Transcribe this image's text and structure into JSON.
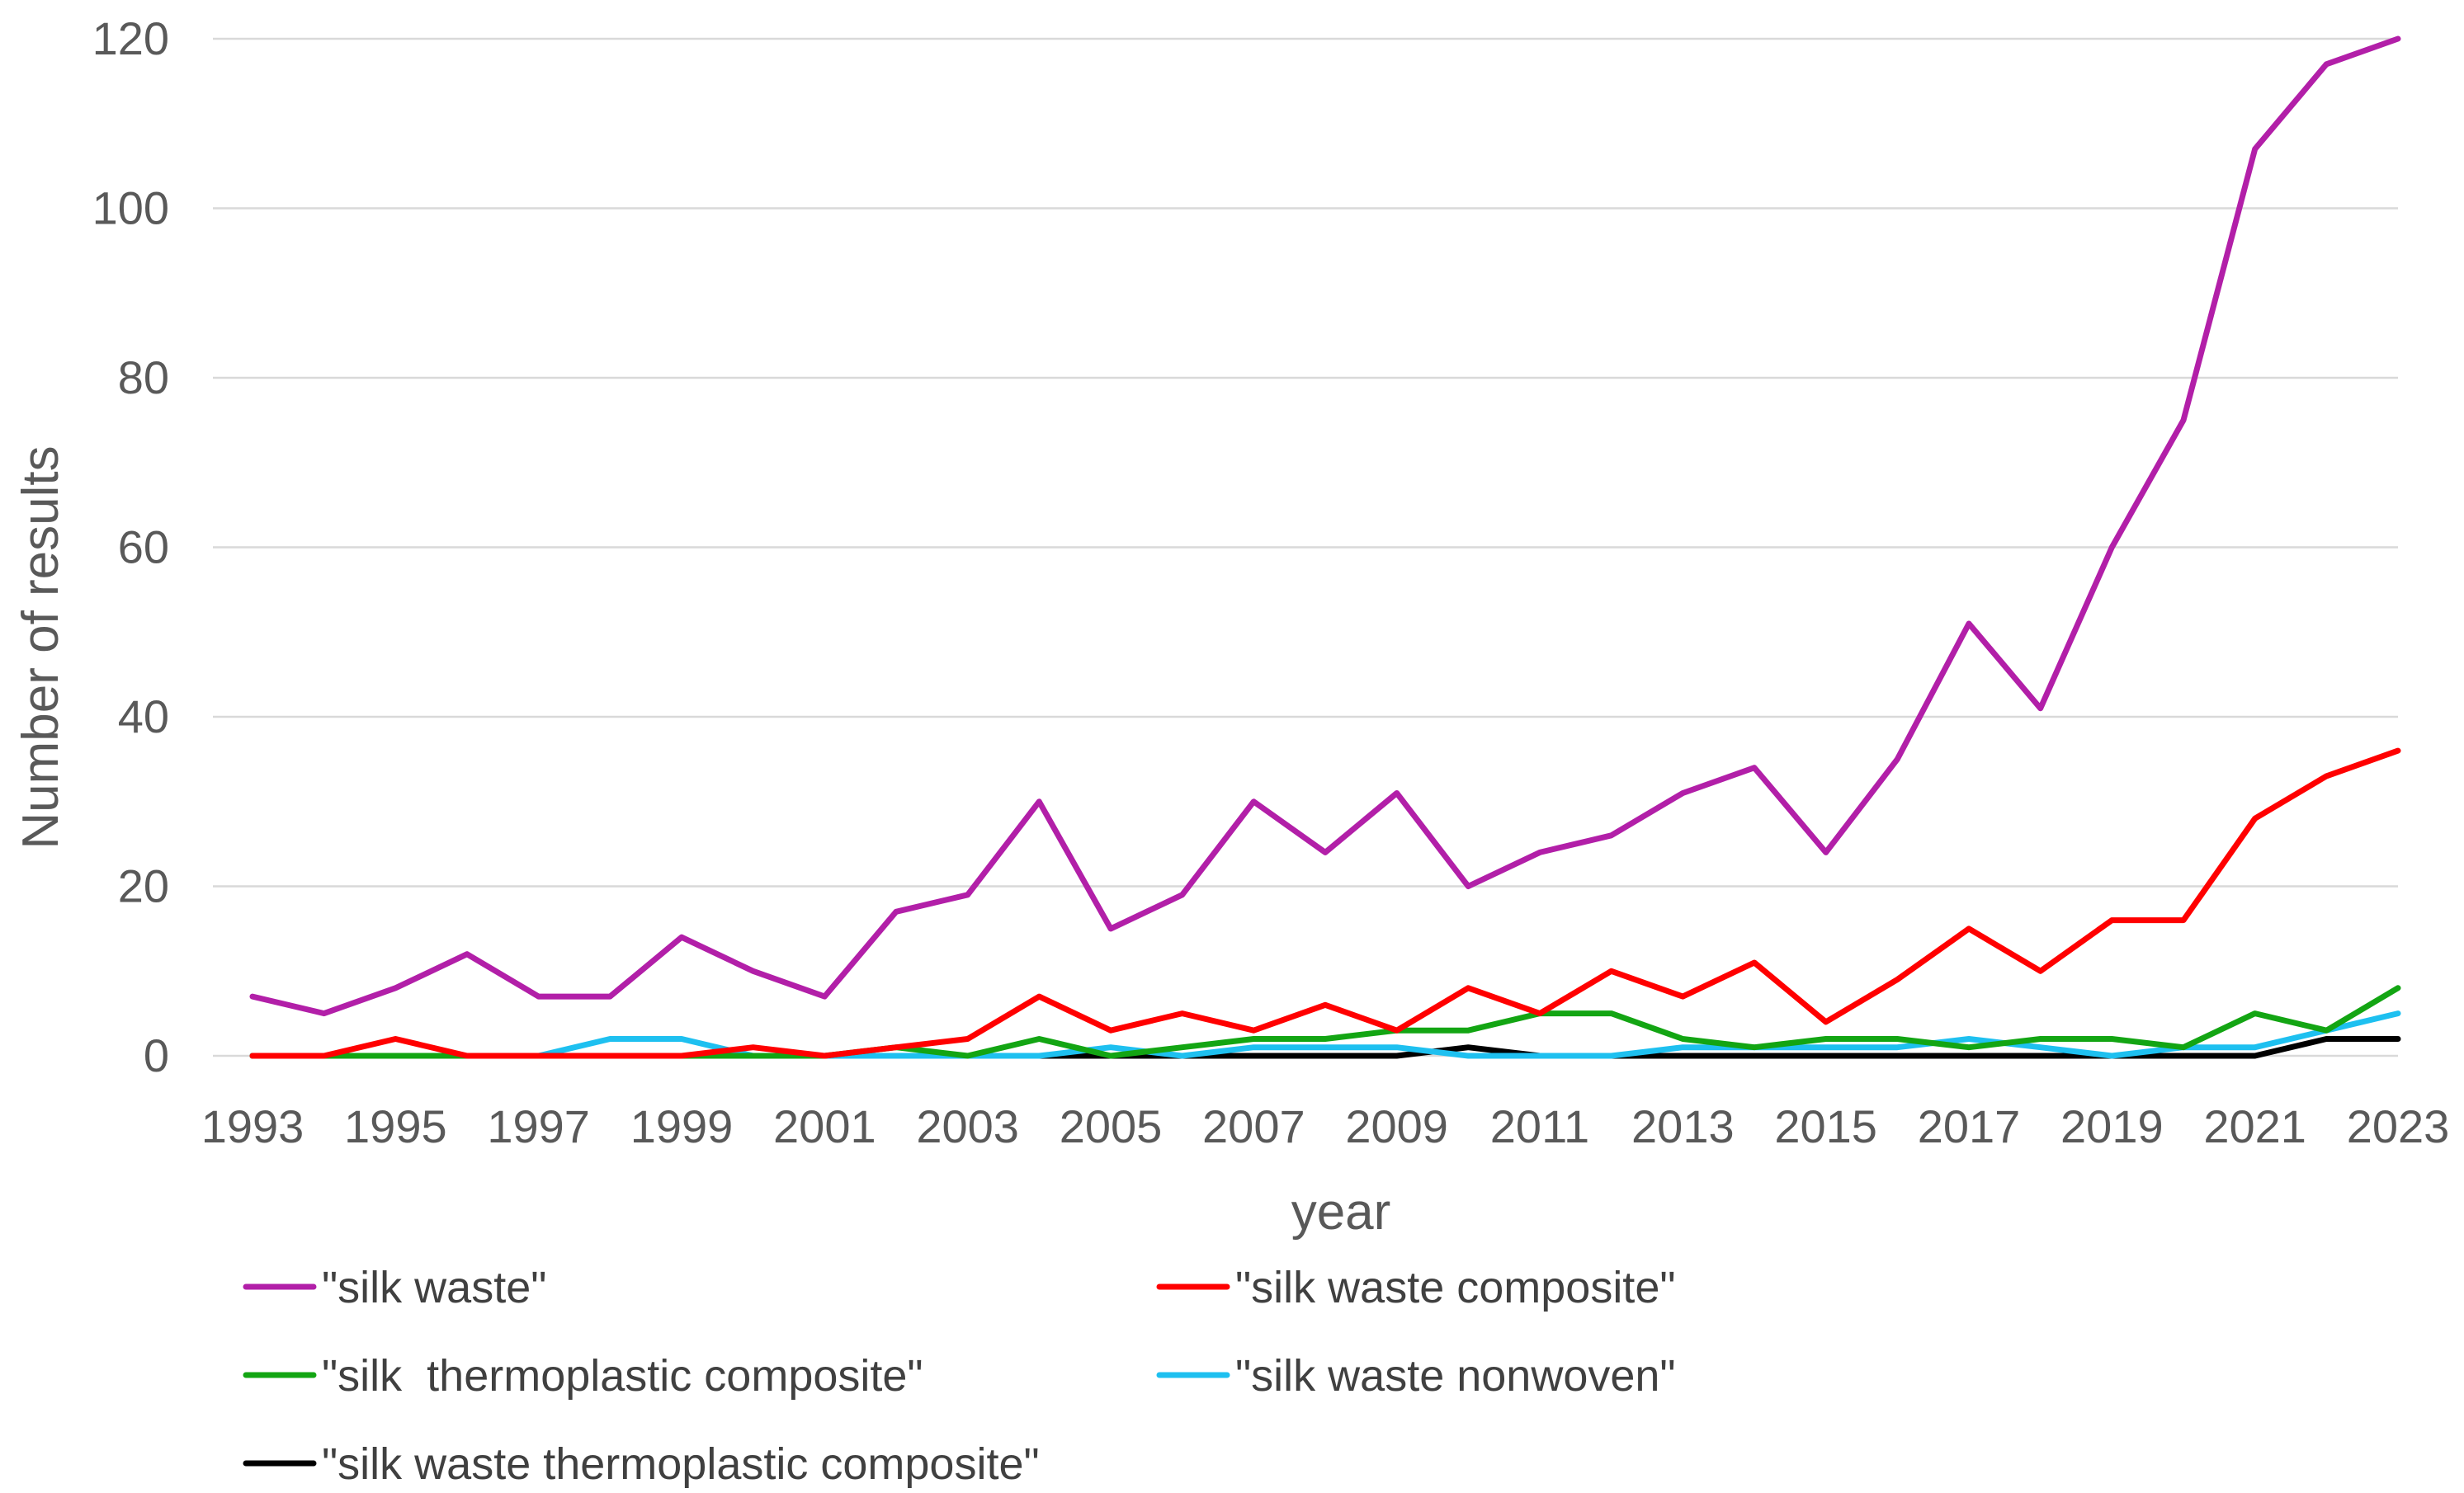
{
  "chart_data": {
    "type": "line",
    "title": "",
    "xlabel": "year",
    "ylabel": "Number of results",
    "ylim": [
      0,
      120
    ],
    "y_ticks": [
      "0",
      "20",
      "40",
      "60",
      "80",
      "100",
      "120"
    ],
    "x_tick_labels": [
      "1993",
      "1995",
      "1997",
      "1999",
      "2001",
      "2003",
      "2005",
      "2007",
      "2009",
      "2011",
      "2013",
      "2015",
      "2017",
      "2019",
      "2021",
      "2023"
    ],
    "x": [
      1993,
      1994,
      1995,
      1996,
      1997,
      1998,
      1999,
      2000,
      2001,
      2002,
      2003,
      2004,
      2005,
      2006,
      2007,
      2008,
      2009,
      2010,
      2011,
      2012,
      2013,
      2014,
      2015,
      2016,
      2017,
      2018,
      2019,
      2020,
      2021,
      2022,
      2023
    ],
    "grid": true,
    "legend_position": "bottom",
    "series": [
      {
        "name": "\"silk waste\"",
        "color": "#b21fa8",
        "values": [
          7,
          5,
          8,
          12,
          7,
          7,
          14,
          10,
          7,
          17,
          19,
          30,
          15,
          19,
          30,
          24,
          31,
          20,
          24,
          26,
          31,
          34,
          24,
          35,
          51,
          41,
          60,
          75,
          107,
          117,
          120
        ]
      },
      {
        "name": "\"silk waste composite\"",
        "color": "#ff0000",
        "values": [
          0,
          0,
          2,
          0,
          0,
          0,
          0,
          1,
          0,
          1,
          2,
          7,
          3,
          5,
          3,
          6,
          3,
          8,
          5,
          10,
          7,
          11,
          4,
          9,
          15,
          10,
          16,
          16,
          28,
          33,
          36
        ]
      },
      {
        "name": "\"silk  thermoplastic composite\"",
        "color": "#13a513",
        "values": [
          0,
          0,
          0,
          0,
          0,
          0,
          0,
          0,
          0,
          1,
          0,
          2,
          0,
          1,
          2,
          2,
          3,
          3,
          5,
          5,
          2,
          1,
          2,
          2,
          1,
          2,
          2,
          1,
          5,
          3,
          8
        ]
      },
      {
        "name": "\"silk waste nonwoven\"",
        "color": "#1ec0f0",
        "values": [
          0,
          0,
          0,
          0,
          0,
          2,
          2,
          0,
          0,
          0,
          0,
          0,
          1,
          0,
          1,
          1,
          1,
          0,
          0,
          0,
          1,
          1,
          1,
          1,
          2,
          1,
          0,
          1,
          1,
          3,
          5
        ]
      },
      {
        "name": "\"silk waste thermoplastic composite\"",
        "color": "#000000",
        "values": [
          0,
          0,
          0,
          0,
          0,
          0,
          0,
          0,
          0,
          0,
          0,
          0,
          0,
          0,
          0,
          0,
          0,
          1,
          0,
          0,
          0,
          0,
          0,
          0,
          0,
          0,
          0,
          0,
          0,
          2,
          2
        ]
      }
    ]
  }
}
